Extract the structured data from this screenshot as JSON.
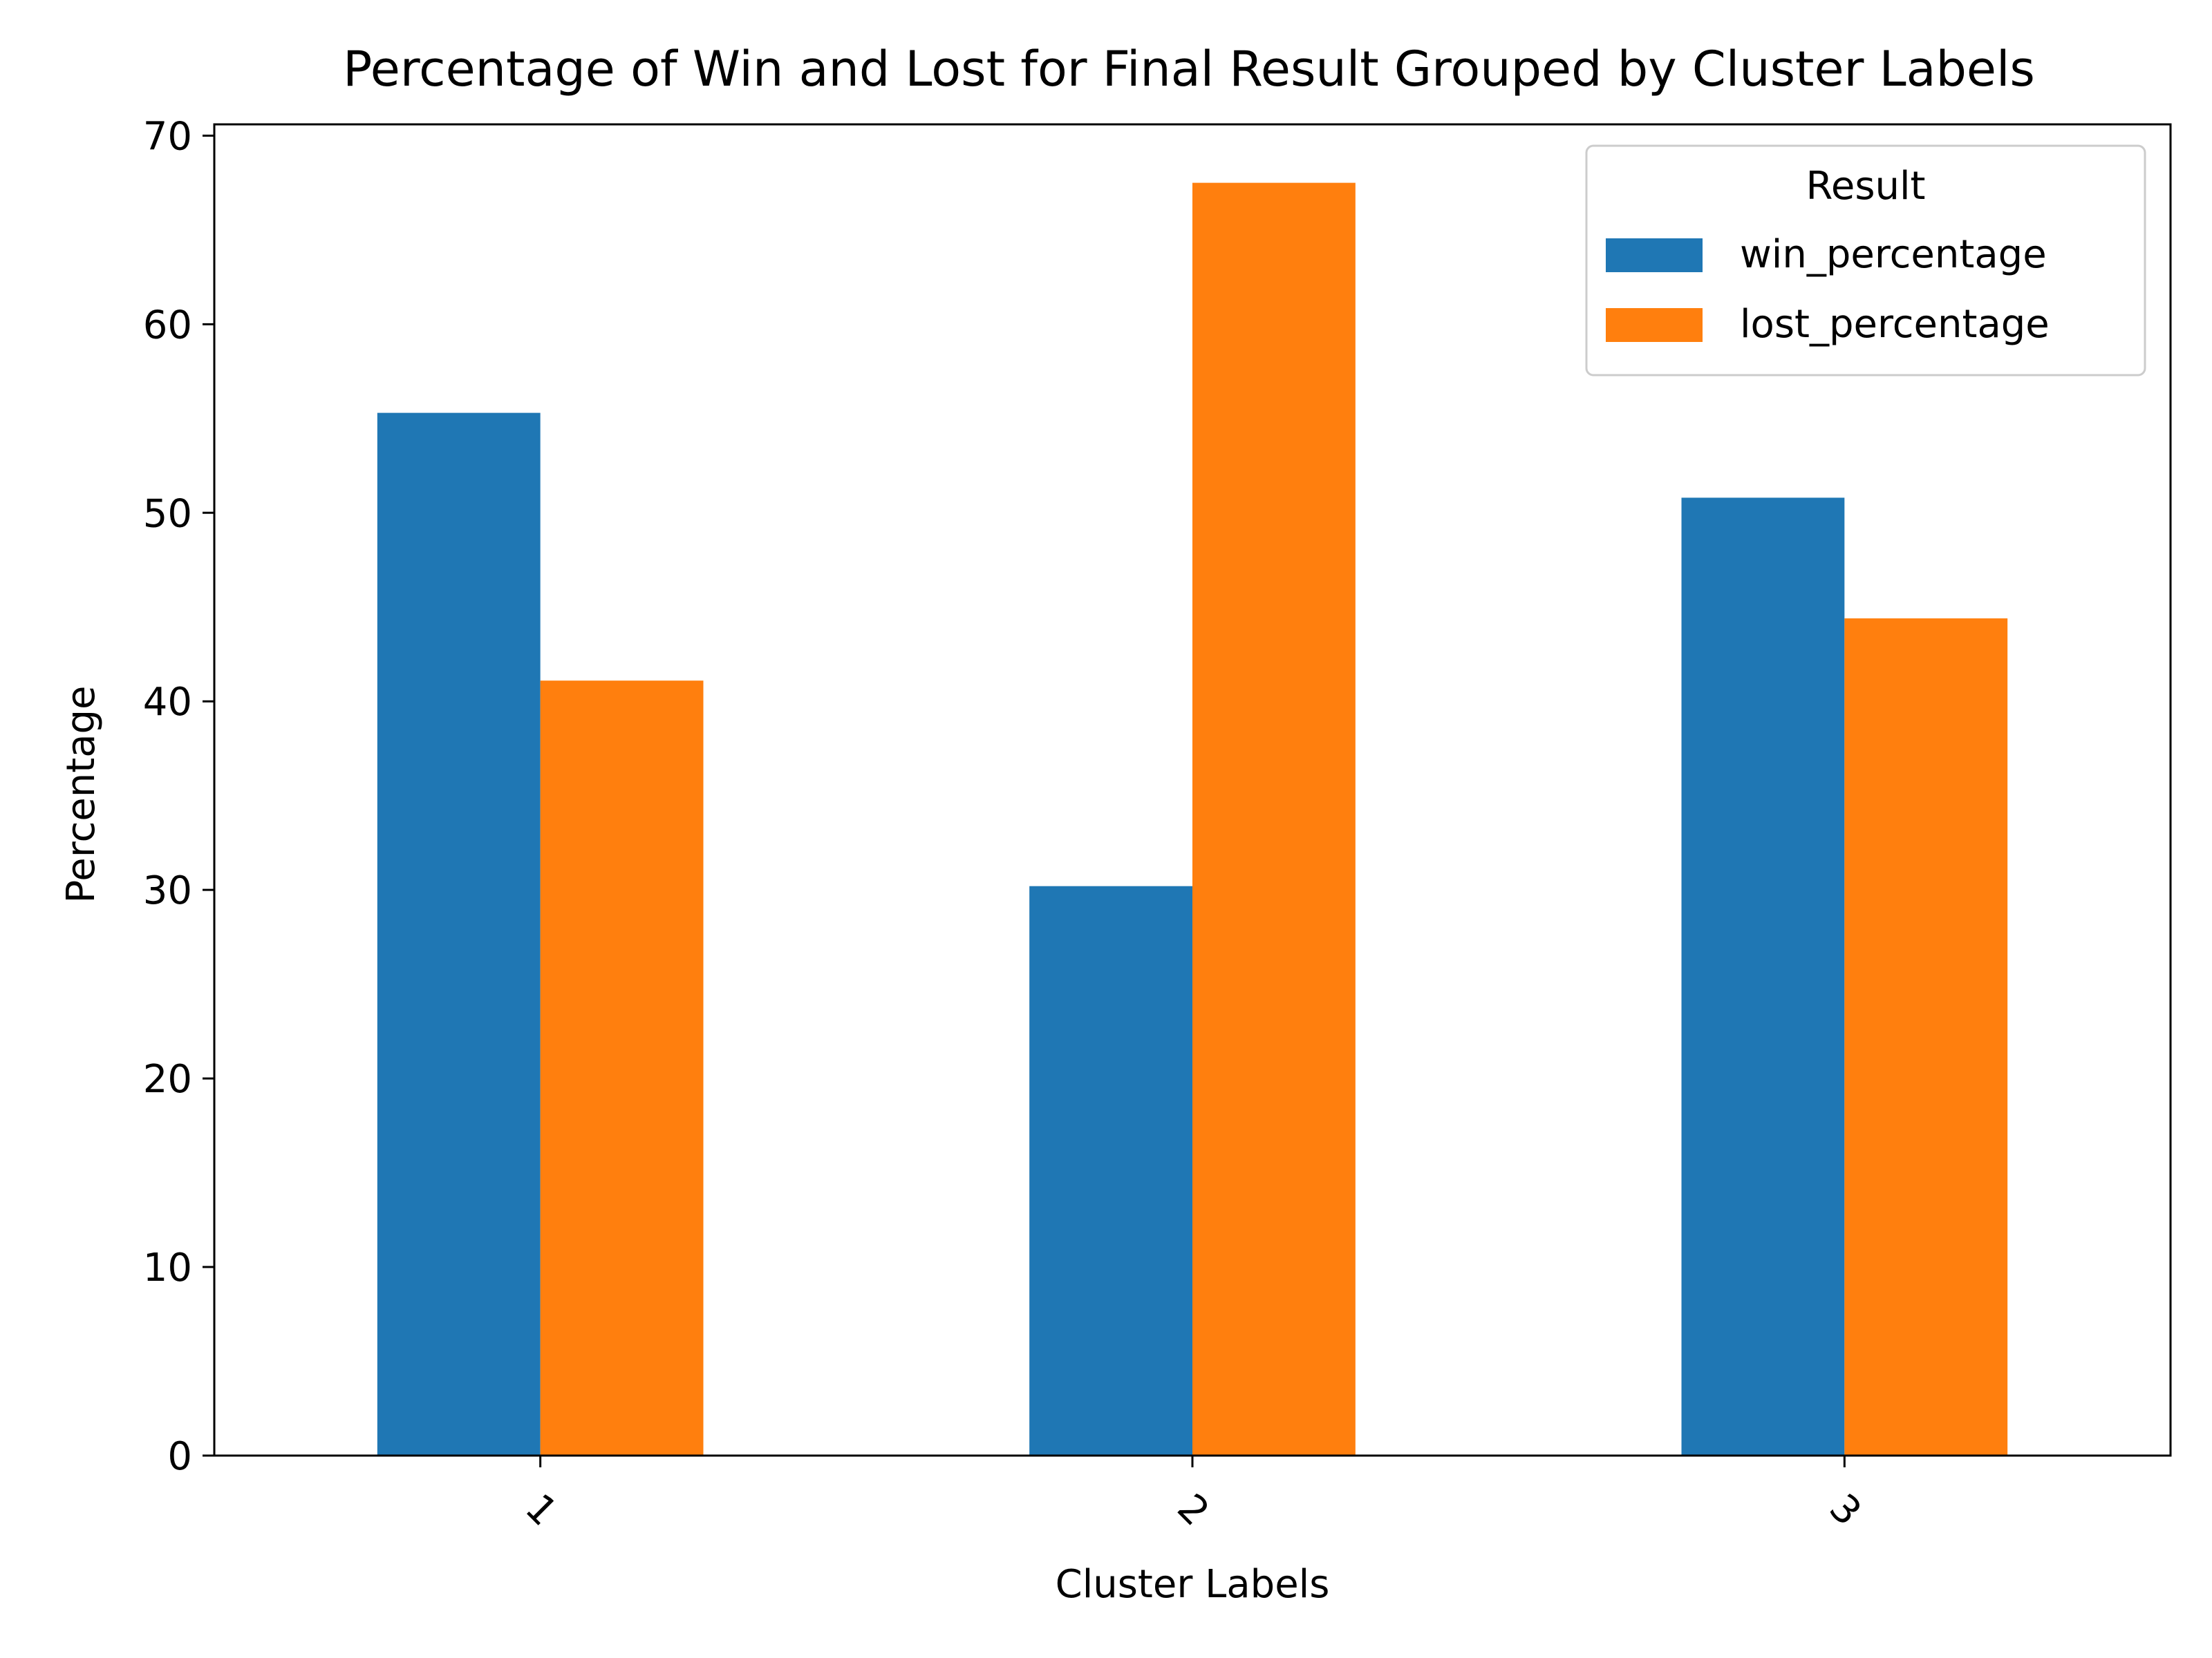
{
  "chart_data": {
    "type": "bar",
    "title": "Percentage of Win and Lost for Final Result Grouped by Cluster Labels",
    "xlabel": "Cluster Labels",
    "ylabel": "Percentage",
    "categories": [
      "1",
      "2",
      "3"
    ],
    "series": [
      {
        "name": "win_percentage",
        "color": "#1f77b4",
        "values": [
          55.3,
          30.2,
          50.8
        ]
      },
      {
        "name": "lost_percentage",
        "color": "#ff7f0e",
        "values": [
          41.1,
          67.5,
          44.4
        ]
      }
    ],
    "ylim": [
      0,
      70.6
    ],
    "yticks": [
      0,
      10,
      20,
      30,
      40,
      50,
      60,
      70
    ],
    "grid": false,
    "legend": {
      "title": "Result",
      "placement": "top-right"
    },
    "xtick_rotation": 45
  }
}
